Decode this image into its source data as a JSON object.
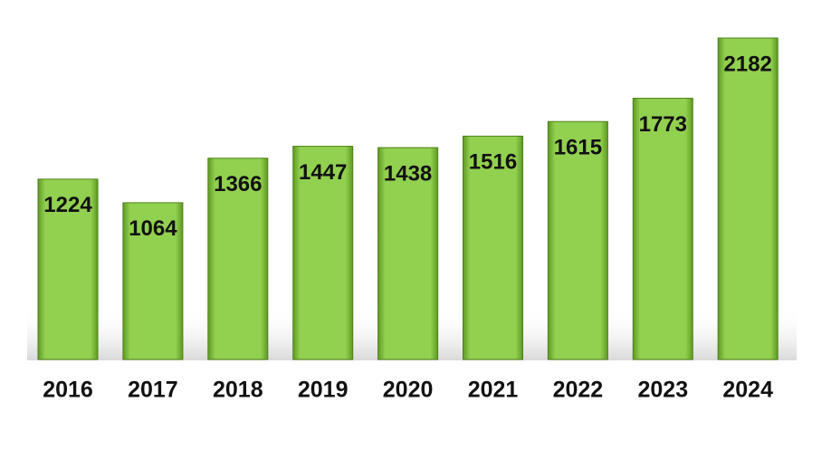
{
  "chart_data": {
    "type": "bar",
    "categories": [
      "2016",
      "2017",
      "2018",
      "2019",
      "2020",
      "2021",
      "2022",
      "2023",
      "2024"
    ],
    "values": [
      1224,
      1064,
      1366,
      1447,
      1438,
      1516,
      1615,
      1773,
      2182
    ],
    "color": "#92d050"
  }
}
